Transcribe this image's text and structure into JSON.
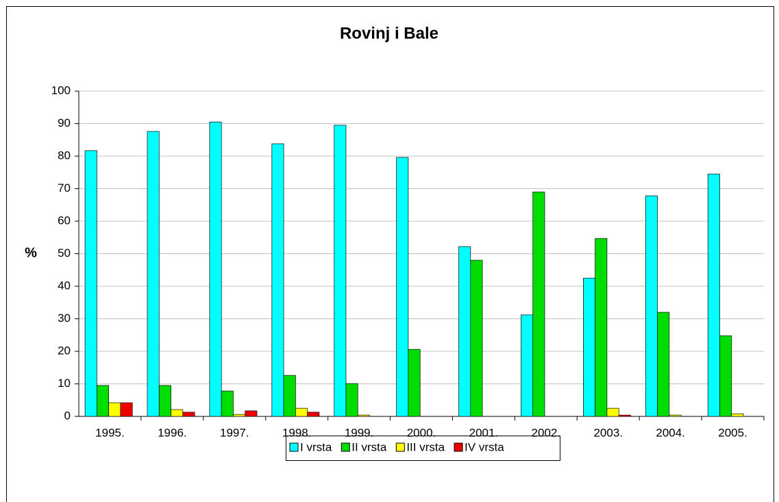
{
  "chart_data": {
    "type": "bar",
    "title": "Rovinj i Bale",
    "y_label": "%",
    "categories": [
      "1995.",
      "1996.",
      "1997.",
      "1998.",
      "1999.",
      "2000.",
      "2001.",
      "2002.",
      "2003.",
      "2004.",
      "2005."
    ],
    "series": [
      {
        "name": "I vrsta",
        "color": "#00ffff",
        "values": [
          81.7,
          87.6,
          90.5,
          83.8,
          89.5,
          79.6,
          52.2,
          31.2,
          42.5,
          67.8,
          74.5
        ]
      },
      {
        "name": "II vrsta",
        "color": "#00dd00",
        "values": [
          9.5,
          9.5,
          7.8,
          12.6,
          10.1,
          20.6,
          48,
          69,
          54.7,
          32,
          24.8
        ]
      },
      {
        "name": "III vrsta",
        "color": "#ffff00",
        "values": [
          4.2,
          2.1,
          0.6,
          2.5,
          0.4,
          0,
          0,
          0,
          2.5,
          0.4,
          0.8
        ]
      },
      {
        "name": "IV vrsta",
        "color": "#ee0000",
        "values": [
          4.2,
          1.3,
          1.7,
          1.3,
          0,
          0,
          0,
          0,
          0.4,
          0,
          0
        ]
      }
    ],
    "ylim": [
      0,
      100
    ],
    "yticks": [
      0,
      10,
      20,
      30,
      40,
      50,
      60,
      70,
      80,
      90,
      100
    ],
    "grid": true,
    "legend": "bottom"
  }
}
